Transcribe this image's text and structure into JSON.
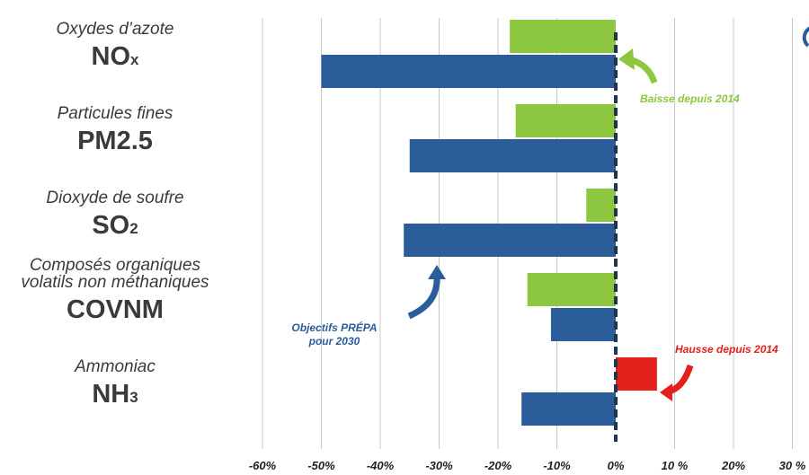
{
  "chart_data": {
    "type": "bar",
    "orientation": "horizontal",
    "categories": [
      {
        "subtitle_lines": [
          "Oxydes d’azote"
        ],
        "code": "NO",
        "code_sub": "x"
      },
      {
        "subtitle_lines": [
          "Particules fines"
        ],
        "code": "PM2.5",
        "code_sub": ""
      },
      {
        "subtitle_lines": [
          "Dioxyde de soufre"
        ],
        "code": "SO",
        "code_sub": "2"
      },
      {
        "subtitle_lines": [
          "Composés organiques",
          "volatils non méthaniques"
        ],
        "code": "COVNM",
        "code_sub": ""
      },
      {
        "subtitle_lines": [
          "Ammoniac"
        ],
        "code": "NH",
        "code_sub": "3"
      }
    ],
    "series": [
      {
        "key": "since2014",
        "values": [
          -18,
          -17,
          -5,
          -15,
          7
        ]
      },
      {
        "key": "prepa2030",
        "values": [
          -50,
          -35,
          -36,
          -11,
          -16
        ]
      }
    ],
    "xlim": [
      -60,
      30
    ],
    "xticks": [
      -60,
      -50,
      -40,
      -30,
      -20,
      -10,
      0,
      10,
      20,
      30
    ],
    "tick_labels": [
      "-60%",
      "-50%",
      "-40%",
      "-30%",
      "-20%",
      "-10%",
      "0%",
      "10 %",
      "20%",
      "30 %"
    ],
    "grid": true,
    "colors": {
      "decrease": "#8dc63f",
      "increase": "#e3201b",
      "objective": "#2b5d9b",
      "zero_line": "#1f3550",
      "grid": "#c8c8c8"
    },
    "annotations": {
      "decrease": "Baisse  depuis 2014",
      "increase": "Hausse depuis 2014",
      "objective_lines": [
        "Objectifs  PRÉPA",
        "pour 2030"
      ]
    }
  }
}
